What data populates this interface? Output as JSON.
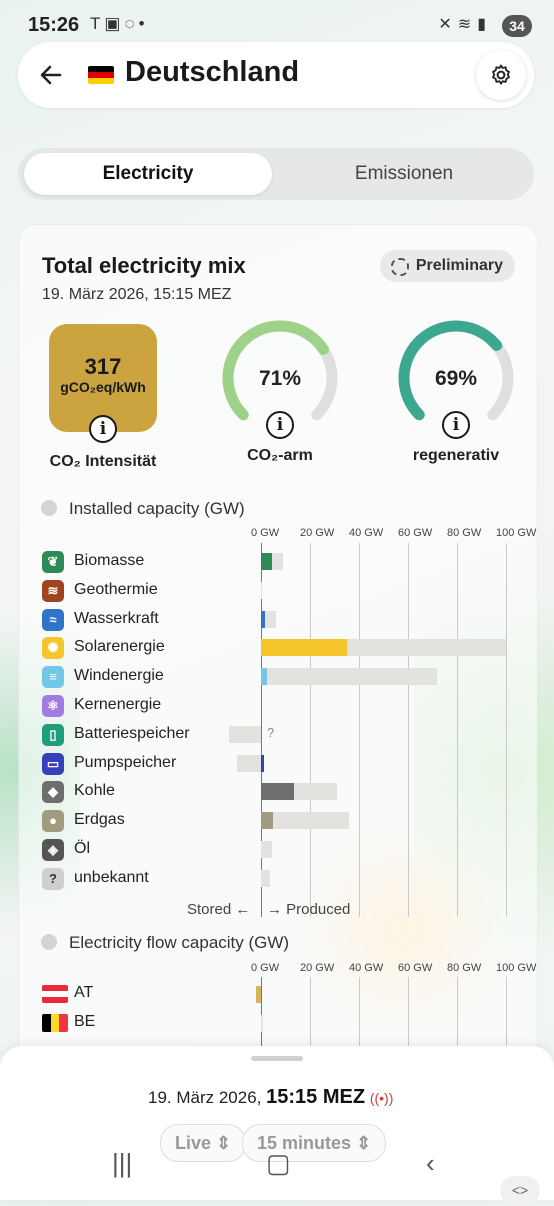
{
  "status_bar": {
    "time": "15:26",
    "left_icons": [
      "tesla-icon",
      "screenshot-icon",
      "whatsapp-icon",
      "dot-icon"
    ],
    "right_icons": [
      "mute-icon",
      "wifi-icon",
      "signal-icon"
    ],
    "battery": "34"
  },
  "header": {
    "title": "Deutschland",
    "flag_colors": [
      "#000000",
      "#dd0000",
      "#ffce00"
    ]
  },
  "tabs": [
    {
      "label": "Electricity",
      "active": true
    },
    {
      "label": "Emissionen",
      "active": false
    }
  ],
  "card": {
    "title": "Total electricity mix",
    "date": "19. März 2026, 15:15 MEZ",
    "badge": "Preliminary",
    "intensity": {
      "value": "317",
      "unit": "gCO₂eq/kWh",
      "label": "CO₂ Intensität",
      "color": "#cca43f"
    },
    "low_carbon": {
      "value": "71%",
      "fraction": 0.71,
      "label": "CO₂-arm",
      "color": "#9fd289"
    },
    "renewable": {
      "value": "69%",
      "fraction": 0.69,
      "label": "regenerativ",
      "color": "#3da890"
    }
  },
  "capacity": {
    "heading": "Installed capacity (GW)",
    "ticks": [
      "0 GW",
      "20 GW",
      "40 GW",
      "60 GW",
      "80 GW",
      "100 GW"
    ],
    "stored_label": "Stored ←",
    "produced_label": "→ Produced",
    "unknown_marker": "?",
    "rows": [
      {
        "name": "Biomasse",
        "icon": "leaf-icon",
        "color": "#2e8b57",
        "produced": 4.5,
        "capacity": 9,
        "stored_cap": 0
      },
      {
        "name": "Geothermie",
        "icon": "heat-icon",
        "color": "#a0441f",
        "produced": 0,
        "capacity": 0.2,
        "stored_cap": 0
      },
      {
        "name": "Wasserkraft",
        "icon": "water-icon",
        "color": "#2f74c7",
        "produced": 1.5,
        "capacity": 6,
        "stored_cap": 0
      },
      {
        "name": "Solarenergie",
        "icon": "sun-icon",
        "color": "#f5c52b",
        "produced": 35,
        "capacity": 100,
        "stored_cap": 0
      },
      {
        "name": "Windenergie",
        "icon": "wind-icon",
        "color": "#74c6e6",
        "produced": 2.5,
        "capacity": 72,
        "stored_cap": 0
      },
      {
        "name": "Kernenergie",
        "icon": "atom-icon",
        "color": "#a27be0",
        "produced": 0,
        "capacity": 0,
        "stored_cap": 0
      },
      {
        "name": "Batteriespeicher",
        "icon": "battery-icon",
        "color": "#1e9e7a",
        "produced": 0,
        "capacity": 13,
        "stored_cap": 13
      },
      {
        "name": "Pumpspeicher",
        "icon": "pump-icon",
        "color": "#3640b8",
        "produced": 1.2,
        "capacity": 10,
        "stored_cap": 10
      },
      {
        "name": "Kohle",
        "icon": "coal-icon",
        "color": "#6e6e6e",
        "produced": 13.5,
        "capacity": 31,
        "stored_cap": 0
      },
      {
        "name": "Erdgas",
        "icon": "gas-icon",
        "color": "#a39a82",
        "produced": 5,
        "capacity": 36,
        "stored_cap": 0
      },
      {
        "name": "Öl",
        "icon": "oil-icon",
        "color": "#555555",
        "produced": 0,
        "capacity": 4.5,
        "stored_cap": 0
      },
      {
        "name": "unbekannt",
        "icon": "question-icon",
        "color": "#cfcfcf",
        "produced": 0,
        "capacity": 3.5,
        "stored_cap": 0
      }
    ]
  },
  "flow": {
    "heading": "Electricity flow capacity (GW)",
    "ticks": [
      "0 GW",
      "20 GW",
      "40 GW",
      "60 GW",
      "80 GW",
      "100 GW"
    ],
    "rows": [
      {
        "name": "AT",
        "flag": [
          "#ed2939",
          "#ffffff",
          "#ed2939"
        ],
        "flow": -2,
        "capacity": 0
      },
      {
        "name": "BE",
        "flag": [
          "#000000",
          "#fdda24",
          "#ef3340"
        ],
        "flow": 0,
        "capacity": 0.8
      }
    ]
  },
  "bottom_sheet": {
    "date": "19. März 2026,",
    "time": "15:15 MEZ",
    "mode": "Live",
    "interval": "15 minutes"
  }
}
